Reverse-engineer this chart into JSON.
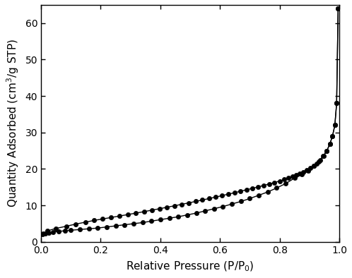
{
  "adsorption_x": [
    0.004,
    0.008,
    0.015,
    0.025,
    0.04,
    0.06,
    0.08,
    0.1,
    0.13,
    0.16,
    0.19,
    0.22,
    0.25,
    0.28,
    0.31,
    0.34,
    0.37,
    0.4,
    0.43,
    0.46,
    0.49,
    0.52,
    0.55,
    0.58,
    0.61,
    0.64,
    0.67,
    0.7,
    0.73,
    0.76,
    0.79,
    0.82,
    0.85,
    0.875,
    0.895,
    0.915,
    0.93,
    0.945,
    0.958,
    0.968,
    0.977,
    0.985,
    0.991,
    0.996
  ],
  "adsorption_y": [
    2.1,
    2.2,
    2.35,
    2.5,
    2.7,
    2.9,
    3.05,
    3.2,
    3.4,
    3.6,
    3.8,
    4.1,
    4.4,
    4.7,
    5.0,
    5.3,
    5.7,
    6.1,
    6.5,
    6.9,
    7.4,
    7.9,
    8.5,
    9.1,
    9.7,
    10.4,
    11.1,
    11.9,
    12.8,
    13.7,
    14.8,
    16.0,
    17.5,
    18.5,
    19.5,
    20.8,
    22.0,
    23.5,
    25.0,
    26.8,
    29.0,
    32.0,
    38.0,
    64.0
  ],
  "desorption_x": [
    0.996,
    0.991,
    0.985,
    0.977,
    0.968,
    0.958,
    0.947,
    0.936,
    0.925,
    0.914,
    0.903,
    0.892,
    0.88,
    0.868,
    0.856,
    0.843,
    0.83,
    0.816,
    0.8,
    0.783,
    0.765,
    0.747,
    0.728,
    0.709,
    0.689,
    0.669,
    0.649,
    0.628,
    0.607,
    0.586,
    0.564,
    0.541,
    0.518,
    0.495,
    0.471,
    0.447,
    0.422,
    0.397,
    0.371,
    0.345,
    0.318,
    0.291,
    0.263,
    0.235,
    0.207,
    0.178,
    0.148,
    0.117,
    0.085,
    0.05,
    0.02
  ],
  "desorption_y": [
    64.0,
    38.0,
    32.0,
    29.0,
    26.8,
    25.0,
    23.5,
    22.5,
    21.5,
    20.8,
    20.2,
    19.7,
    19.2,
    18.7,
    18.3,
    17.9,
    17.5,
    17.1,
    16.7,
    16.3,
    15.9,
    15.5,
    15.1,
    14.7,
    14.3,
    13.9,
    13.5,
    13.1,
    12.7,
    12.3,
    11.9,
    11.5,
    11.1,
    10.7,
    10.3,
    9.9,
    9.5,
    9.1,
    8.7,
    8.3,
    7.9,
    7.5,
    7.1,
    6.7,
    6.3,
    5.9,
    5.4,
    4.9,
    4.3,
    3.7,
    3.0
  ],
  "xlabel": "Relative Pressure (P/P$_0$)",
  "ylabel": "Quantity Adsorbed (cm$^3$/g STP)",
  "xlim": [
    0.0,
    1.0
  ],
  "ylim": [
    0,
    65
  ],
  "xticks": [
    0.0,
    0.2,
    0.4,
    0.6,
    0.8,
    1.0
  ],
  "yticks": [
    0,
    10,
    20,
    30,
    40,
    50,
    60
  ],
  "line_color": "#000000",
  "marker_color": "#000000",
  "marker_size": 4.5,
  "line_width": 1.0,
  "background_color": "#ffffff"
}
